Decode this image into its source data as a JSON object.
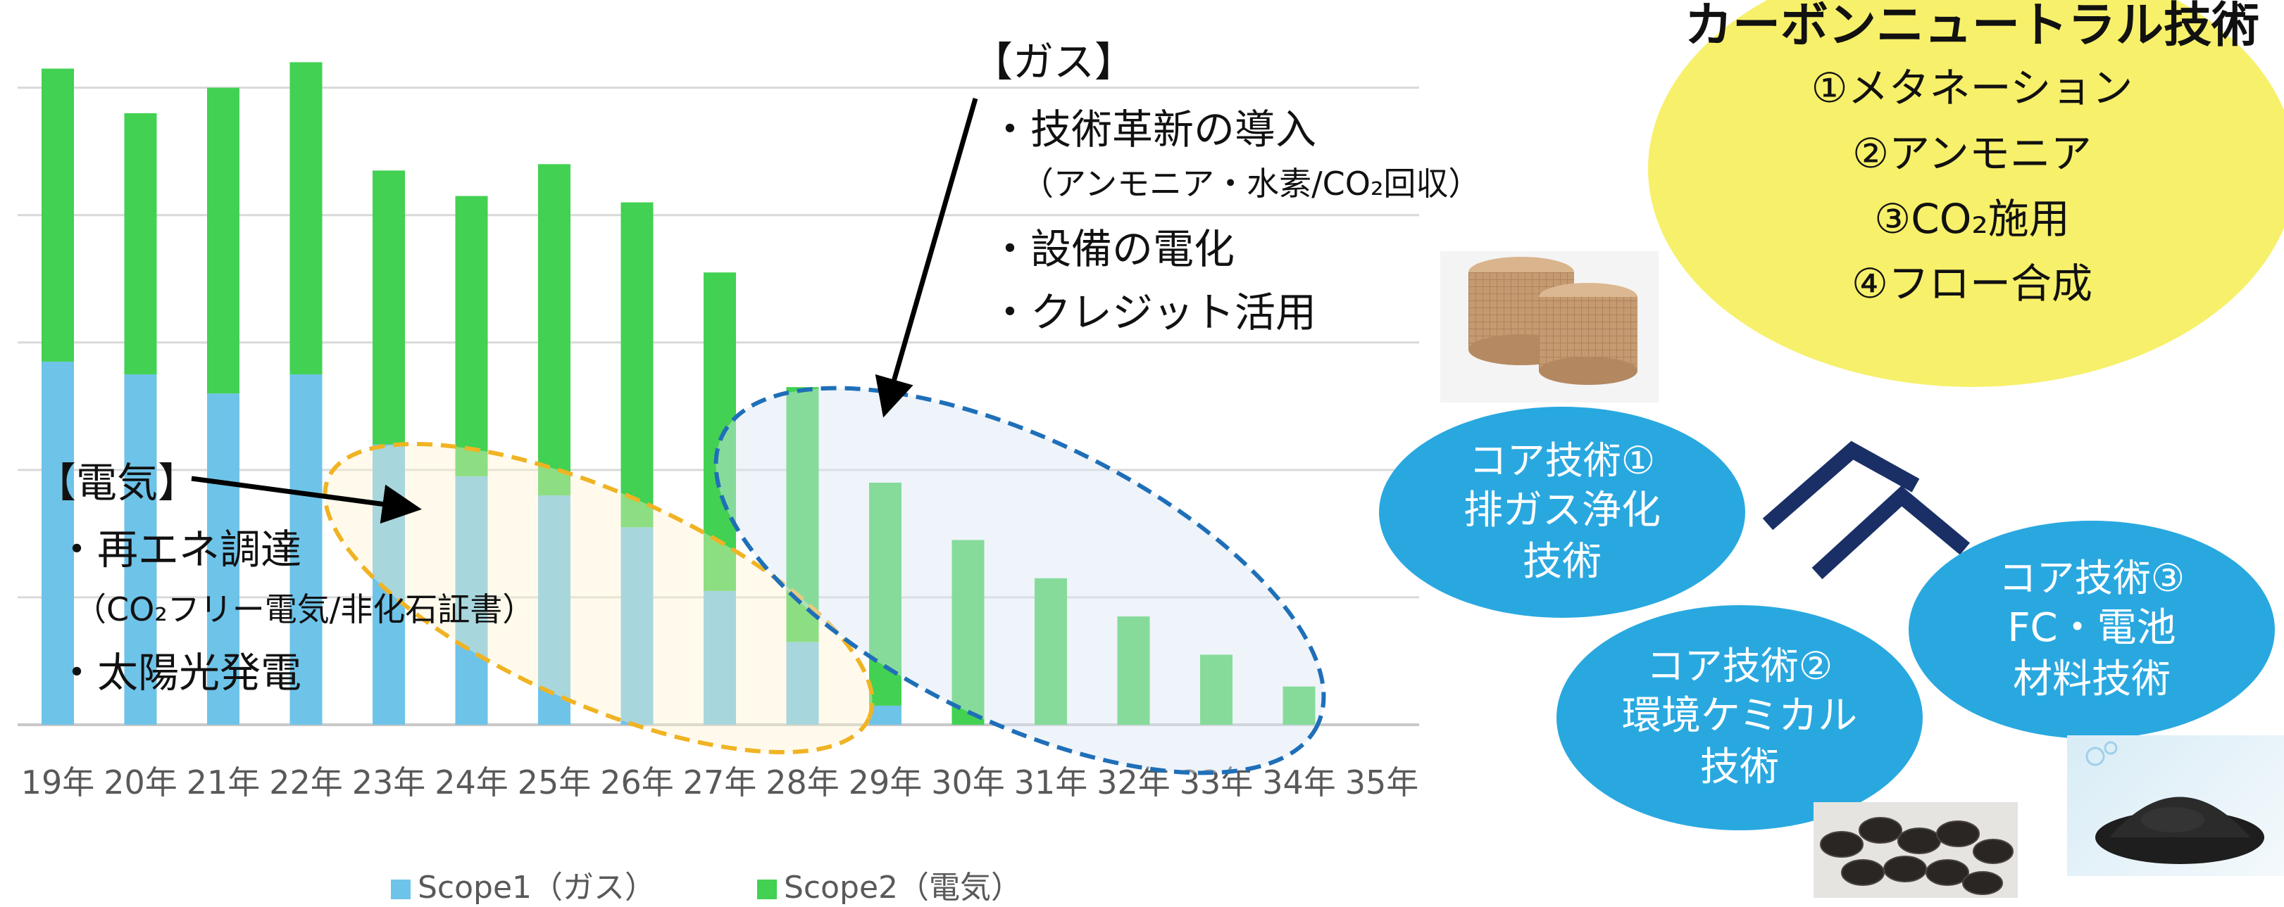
{
  "chart_data": {
    "type": "bar",
    "stacked": true,
    "categories": [
      "19年",
      "20年",
      "21年",
      "22年",
      "23年",
      "24年",
      "25年",
      "26年",
      "27年",
      "28年",
      "29年",
      "30年",
      "31年",
      "32年",
      "33年",
      "34年",
      "35年"
    ],
    "series": [
      {
        "name": "Scope1（ガス）",
        "color": "#6ec3e8",
        "values": [
          57,
          55,
          52,
          55,
          44,
          39,
          36,
          31,
          21,
          13,
          3,
          0,
          0,
          0,
          0,
          0,
          0
        ]
      },
      {
        "name": "Scope2（電気）",
        "color": "#42d152",
        "values": [
          46,
          41,
          48,
          49,
          43,
          44,
          52,
          51,
          50,
          40,
          35,
          29,
          23,
          17,
          11,
          6,
          0
        ]
      }
    ],
    "ylim": [
      0,
      112
    ],
    "grid": true,
    "legend_position": "bottom"
  },
  "annotations": {
    "gas": {
      "title": "【ガス】",
      "items": [
        "・技術革新の導入",
        "（アンモニア・水素/CO₂回収）",
        "・設備の電化",
        "・クレジット活用"
      ]
    },
    "electric": {
      "title": "【電気】",
      "items": [
        "・再エネ調達",
        "（CO₂フリー電気/非化石証書）",
        "・太陽光発電"
      ]
    }
  },
  "carbon_neutral": {
    "title": "カーボンニュートラル技術",
    "items": [
      "①メタネーション",
      "②アンモニア",
      "③CO₂施用",
      "④フロー合成"
    ]
  },
  "core_tech": [
    {
      "head": "コア技術①",
      "lines": [
        "排ガス浄化",
        "技術"
      ]
    },
    {
      "head": "コア技術②",
      "lines": [
        "環境ケミカル",
        "技術"
      ]
    },
    {
      "head": "コア技術③",
      "lines": [
        "FC・電池",
        "材料技術"
      ]
    }
  ],
  "colors": {
    "scope1": "#6ec3e8",
    "scope2": "#42d152",
    "gas_ellipse": "#1f6fb8",
    "electric_ellipse": "#f0b323",
    "bubble": "#29a8e0",
    "chevron": "#1a2f66",
    "yellow": "#f7f06a"
  },
  "photos": [
    "honeycomb-catalyst-photo",
    "black-pellets-photo",
    "black-powder-photo"
  ]
}
